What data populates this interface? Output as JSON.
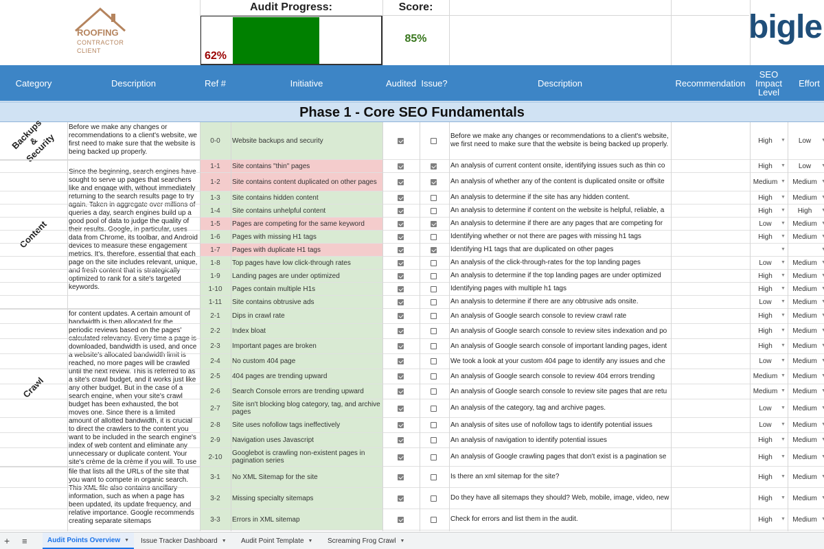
{
  "top": {
    "logo_line1": "ROOFING",
    "logo_line2": "CONTRACTOR",
    "logo_line3": "CLIENT",
    "progress_label": "Audit Progress:",
    "progress_value": "62%",
    "progress_fraction": 0.62,
    "score_label": "Score:",
    "score_value": "85%",
    "brand_logo_text": "bigle"
  },
  "columns": {
    "category": "Category",
    "description": "Description",
    "ref": "Ref #",
    "initiative": "Initiative",
    "audited": "Audited",
    "issue": "Issue?",
    "description2": "Description",
    "recommendation": "Recommendation",
    "impact": "SEO Impact Level",
    "effort": "Effort"
  },
  "phase_title": "Phase 1 - Core SEO Fundamentals",
  "categories": [
    {
      "label": "Backups & Security",
      "text": "Before we make any changes or recommendations to a client's website, we first need to make sure that the website is being backed up properly."
    },
    {
      "label": "Content",
      "text": "Since the beginning, search engines have sought to serve up pages that searchers like and engage with, without immediately returning to the search results page to try again. Taken in aggregate over millions of queries a day, search engines build up a good pool of data to judge the quality of their results. Google, in particular, uses data from Chrome, its toolbar, and Android devices to measure these engagement metrics. It's, therefore, essential that each page on the site includes relevant, unique, and fresh content that is strategically optimized to rank for a site's targeted keywords."
    },
    {
      "label": "Crawl",
      "text": "for content updates. A certain amount of bandwidth is then allocated for the periodic reviews based on the pages' calculated relevancy. Every time a page is downloaded, bandwidth is used, and once a website's allocated bandwidth limit is reached, no more pages will be crawled until the next review. This is referred to as a site's crawl budget, and it works just like any other budget. But in the case of a search engine, when your site's crawl budget has been exhausted, the bot moves one. Since there is a limited amount of allotted bandwidth, it is crucial to direct the crawlers to the content you want to be included in the search engine's index of web content and eliminate any unnecessary or duplicate content. Your site's crème de la crème if you will. To use your site's crawl budget"
    },
    {
      "label": "",
      "text": "file that lists all the URLs of the site that you want to compete in organic search. This XML file also contains ancillary information, such as when a page has been updated, its update frequency, and relative importance. Google recommends creating separate sitemaps"
    }
  ],
  "rows": [
    {
      "ref": "0-0",
      "initiative": "Website backups and security",
      "audited": true,
      "issue": false,
      "description": "Before we make any changes or recommendations to a client's website, we first need to make sure that the website is being backed up properly.",
      "impact": "High",
      "effort": "Low",
      "red": false
    },
    {
      "ref": "1-1",
      "initiative": "Site contains \"thin\" pages",
      "audited": true,
      "issue": true,
      "description": "An analysis of current content onsite, identifying issues such as thin co",
      "impact": "High",
      "effort": "Low",
      "red": true
    },
    {
      "ref": "1-2",
      "initiative": "Site contains content duplicated on other pages",
      "audited": true,
      "issue": true,
      "description": "An analysis of whether any of the content is duplicated onsite or offsite",
      "impact": "Medium",
      "effort": "Medium",
      "red": true
    },
    {
      "ref": "1-3",
      "initiative": "Site contains hidden content",
      "audited": true,
      "issue": false,
      "description": "An analysis to determine if the site has any hidden content.",
      "impact": "High",
      "effort": "Medium",
      "red": false
    },
    {
      "ref": "1-4",
      "initiative": "Site contains unhelpful content",
      "audited": true,
      "issue": false,
      "description": "An analysis to determine if content on the website is helpful, reliable, a",
      "impact": "High",
      "effort": "High",
      "red": false
    },
    {
      "ref": "1-5",
      "initiative": "Pages are competing for the same keyword",
      "audited": true,
      "issue": true,
      "description": "An analysis to determine if there are any pages that are competing for",
      "impact": "Low",
      "effort": "Medium",
      "red": true
    },
    {
      "ref": "1-6",
      "initiative": "Pages with missing H1 tags",
      "audited": true,
      "issue": false,
      "description": "Identifying whether or not there are pages with missing h1 tags",
      "impact": "High",
      "effort": "Medium",
      "red": false
    },
    {
      "ref": "1-7",
      "initiative": "Pages with duplicate H1 tags",
      "audited": true,
      "issue": true,
      "description": "Identifying H1 tags that are duplicated on other pages",
      "impact": "",
      "effort": "",
      "red": true
    },
    {
      "ref": "1-8",
      "initiative": "Top pages have low click-through rates",
      "audited": true,
      "issue": false,
      "description": "An analysis of the click-through-rates for the top landing pages",
      "impact": "Low",
      "effort": "Medium",
      "red": false
    },
    {
      "ref": "1-9",
      "initiative": "Landing pages are under optimized",
      "audited": true,
      "issue": false,
      "description": "An analysis to determine if the top landing pages are under optimized",
      "impact": "High",
      "effort": "Medium",
      "red": false
    },
    {
      "ref": "1-10",
      "initiative": "Pages contain multiple H1s",
      "audited": true,
      "issue": false,
      "description": "Identifying pages with multiple h1 tags",
      "impact": "High",
      "effort": "Medium",
      "red": false
    },
    {
      "ref": "1-11",
      "initiative": "Site contains obtrusive ads",
      "audited": true,
      "issue": false,
      "description": "An analysis to determine if there are any obtrusive ads onsite.",
      "impact": "Low",
      "effort": "Medium",
      "red": false
    },
    {
      "ref": "2-1",
      "initiative": "Dips in crawl rate",
      "audited": true,
      "issue": false,
      "description": "An analysis of Google search console to review crawl rate",
      "impact": "High",
      "effort": "Medium",
      "red": false
    },
    {
      "ref": "2-2",
      "initiative": "Index bloat",
      "audited": true,
      "issue": false,
      "description": "An analysis of Google search console to review sites indexation and po",
      "impact": "High",
      "effort": "Medium",
      "red": false
    },
    {
      "ref": "2-3",
      "initiative": "Important pages are broken",
      "audited": true,
      "issue": false,
      "description": "An analysis of Google search console of important landing pages, ident",
      "impact": "High",
      "effort": "Medium",
      "red": false
    },
    {
      "ref": "2-4",
      "initiative": "No custom 404 page",
      "audited": true,
      "issue": false,
      "description": "We took a look at your custom 404 page to identify any issues and che",
      "impact": "Low",
      "effort": "Medium",
      "red": false
    },
    {
      "ref": "2-5",
      "initiative": "404 pages are trending upward",
      "audited": true,
      "issue": false,
      "description": "An analysis of Google search console to review 404 errors trending",
      "impact": "Medium",
      "effort": "Medium",
      "red": false
    },
    {
      "ref": "2-6",
      "initiative": "Search Console errors are trending upward",
      "audited": true,
      "issue": false,
      "description": "An analysis of Google search console to review site pages that are retu",
      "impact": "Medium",
      "effort": "Medium",
      "red": false
    },
    {
      "ref": "2-7",
      "initiative": "Site isn't blocking blog category, tag, and archive pages",
      "audited": true,
      "issue": false,
      "description": "An analysis of the category, tag and archive pages.",
      "impact": "Low",
      "effort": "Medium",
      "red": false
    },
    {
      "ref": "2-8",
      "initiative": "Site uses nofollow tags ineffectively",
      "audited": true,
      "issue": false,
      "description": "An analysis of sites use of nofollow tags to identify potential issues",
      "impact": "Low",
      "effort": "Medium",
      "red": false
    },
    {
      "ref": "2-9",
      "initiative": "Navigation uses Javascript",
      "audited": true,
      "issue": false,
      "description": "An analysis of navigation to identify potential issues",
      "impact": "High",
      "effort": "Medium",
      "red": false
    },
    {
      "ref": "2-10",
      "initiative": "Googlebot is crawling non-existent pages in pagination series",
      "audited": true,
      "issue": false,
      "description": "An analysis of Google crawling pages that don't exist is a pagination se",
      "impact": "High",
      "effort": "Medium",
      "red": false
    },
    {
      "ref": "3-1",
      "initiative": "No XML Sitemap for the site",
      "audited": true,
      "issue": false,
      "description": "Is there an xml sitemap for the site?",
      "impact": "High",
      "effort": "Medium",
      "red": false
    },
    {
      "ref": "3-2",
      "initiative": "Missing specialty sitemaps",
      "audited": true,
      "issue": false,
      "description": "Do they have all sitemaps they should? Web, mobile, image, video, new",
      "impact": "High",
      "effort": "Medium",
      "red": false
    },
    {
      "ref": "3-3",
      "initiative": "Errors in XML sitemap",
      "audited": true,
      "issue": false,
      "description": "Check for errors and list them in the audit.",
      "impact": "High",
      "effort": "Medium",
      "red": false
    }
  ],
  "tabs": [
    {
      "label": "Audit Points Overview",
      "active": true
    },
    {
      "label": "Issue Tracker Dashboard",
      "active": false
    },
    {
      "label": "Audit Point Template",
      "active": false
    },
    {
      "label": "Screaming Frog Crawl",
      "active": false
    }
  ]
}
